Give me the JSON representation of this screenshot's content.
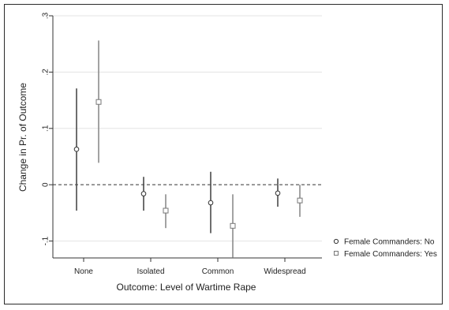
{
  "chart_data": {
    "type": "scatter",
    "title": "",
    "xlabel": "Outcome: Level of Wartime Rape",
    "ylabel": "Change in Pr. of Outcome",
    "categories": [
      "None",
      "Isolated",
      "Common",
      "Widespread"
    ],
    "y_ticks": [
      {
        "value": -0.1,
        "label": "-.1"
      },
      {
        "value": 0,
        "label": "0"
      },
      {
        "value": 0.1,
        "label": ".1"
      },
      {
        "value": 0.2,
        "label": ".2"
      },
      {
        "value": 0.3,
        "label": ".3"
      }
    ],
    "ylim": [
      -0.13,
      0.3
    ],
    "grid": true,
    "reference_line": 0,
    "legend_position": "bottom-right",
    "series": [
      {
        "name": "Female Commanders: No",
        "marker": "circle",
        "color": "#4a4a4a",
        "values": [
          0.063,
          -0.016,
          -0.032,
          -0.015
        ],
        "ci_low": [
          -0.046,
          -0.046,
          -0.086,
          -0.039
        ],
        "ci_high": [
          0.171,
          0.014,
          0.023,
          0.011
        ]
      },
      {
        "name": "Female Commanders: Yes",
        "marker": "square",
        "color": "#8c8c8c",
        "values": [
          0.147,
          -0.046,
          -0.073,
          -0.028
        ],
        "ci_low": [
          0.039,
          -0.077,
          -0.129,
          -0.057
        ],
        "ci_high": [
          0.256,
          -0.017,
          -0.017,
          0.0
        ]
      }
    ]
  }
}
